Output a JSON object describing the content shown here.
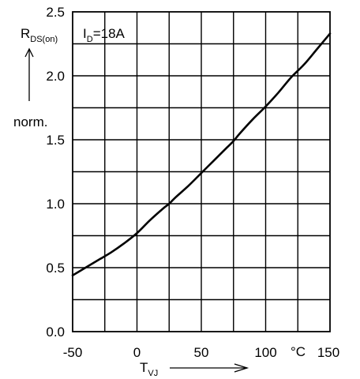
{
  "chart_data": {
    "type": "line",
    "xlim": [
      -50,
      150
    ],
    "ylim": [
      0.0,
      2.5
    ],
    "x_ticks": [
      -50,
      0,
      50,
      100,
      150
    ],
    "x_tick_labels": [
      "-50",
      "0",
      "50",
      "100",
      "150"
    ],
    "y_ticks": [
      0.0,
      0.5,
      1.0,
      1.5,
      2.0,
      2.5
    ],
    "y_tick_labels": [
      "0.0",
      "0.5",
      "1.0",
      "1.5",
      "2.0",
      "2.5"
    ],
    "x_grid_step": 25,
    "y_grid_step": 0.25,
    "grid": true,
    "xlabel": {
      "main": "T",
      "sub": "VJ",
      "unit": "°C"
    },
    "ylabel": {
      "main": "R",
      "sub": "DS(on)",
      "norm": "norm."
    },
    "annotation": {
      "main": "I",
      "sub": "D",
      "rest": "=18A"
    },
    "series": [
      {
        "x": [
          -50,
          -40,
          -30,
          -20,
          -10,
          0,
          10,
          20,
          25,
          30,
          40,
          50,
          60,
          70,
          75,
          80,
          90,
          100,
          110,
          120,
          130,
          140,
          150
        ],
        "values": [
          0.44,
          0.5,
          0.56,
          0.62,
          0.69,
          0.77,
          0.87,
          0.96,
          1.0,
          1.05,
          1.14,
          1.24,
          1.34,
          1.44,
          1.49,
          1.55,
          1.66,
          1.76,
          1.87,
          1.99,
          2.09,
          2.21,
          2.33
        ]
      }
    ]
  }
}
